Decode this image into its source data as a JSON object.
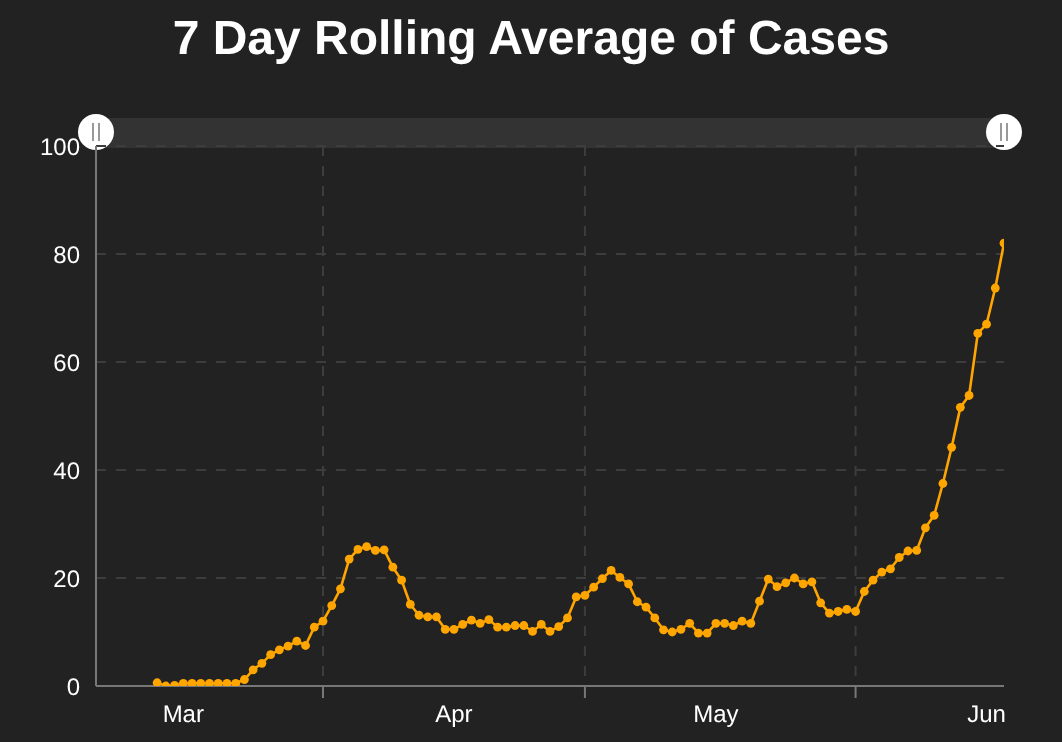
{
  "chart_data": {
    "type": "line",
    "title": "7 Day Rolling Average of Cases",
    "x": [
      "--03-13",
      "--03-14",
      "--03-15",
      "--03-16",
      "--03-17",
      "--03-18",
      "--03-19",
      "--03-20",
      "--03-21",
      "--03-22",
      "--03-23",
      "--03-24",
      "--03-25",
      "--03-26",
      "--03-27",
      "--03-28",
      "--03-29",
      "--03-30",
      "--03-31",
      "--04-01",
      "--04-02",
      "--04-03",
      "--04-04",
      "--04-05",
      "--04-06",
      "--04-07",
      "--04-08",
      "--04-09",
      "--04-10",
      "--04-11",
      "--04-12",
      "--04-13",
      "--04-14",
      "--04-15",
      "--04-16",
      "--04-17",
      "--04-18",
      "--04-19",
      "--04-20",
      "--04-21",
      "--04-22",
      "--04-23",
      "--04-24",
      "--04-25",
      "--04-26",
      "--04-27",
      "--04-28",
      "--04-29",
      "--04-30",
      "--05-01",
      "--05-02",
      "--05-03",
      "--05-04",
      "--05-05",
      "--05-06",
      "--05-07",
      "--05-08",
      "--05-09",
      "--05-10",
      "--05-11",
      "--05-12",
      "--05-13",
      "--05-14",
      "--05-15",
      "--05-16",
      "--05-17",
      "--05-18",
      "--05-19",
      "--05-20",
      "--05-21",
      "--05-22",
      "--05-23",
      "--05-24",
      "--05-25",
      "--05-26",
      "--05-27",
      "--05-28",
      "--05-29",
      "--05-30",
      "--05-31",
      "--06-01",
      "--06-02",
      "--06-03",
      "--06-04",
      "--06-05",
      "--06-06",
      "--06-07",
      "--06-08",
      "--06-09",
      "--06-10",
      "--06-11",
      "--06-12",
      "--06-13",
      "--06-14",
      "--06-15",
      "--06-16",
      "--06-17",
      "--06-18"
    ],
    "series": [
      {
        "color": "#ffa500",
        "values": [
          0.6,
          0,
          0.1,
          0.5,
          0.5,
          0.5,
          0.5,
          0.5,
          0.5,
          0.5,
          1.2,
          3.0,
          4.2,
          5.8,
          6.7,
          7.4,
          8.3,
          7.5,
          10.9,
          12.0,
          14.9,
          18.0,
          23.5,
          25.3,
          25.8,
          25.1,
          25.2,
          22.0,
          19.6,
          15.1,
          13.1,
          12.8,
          12.8,
          10.5,
          10.5,
          11.4,
          12.2,
          11.6,
          12.3,
          10.9,
          10.9,
          11.2,
          11.2,
          10.1,
          11.4,
          10.1,
          11.0,
          12.6,
          16.5,
          16.8,
          18.3,
          19.9,
          21.4,
          20.1,
          18.9,
          15.6,
          14.6,
          12.6,
          10.4,
          10.0,
          10.5,
          11.6,
          9.8,
          9.8,
          11.6,
          11.6,
          11.2,
          12.0,
          11.6,
          15.7,
          19.8,
          18.4,
          19.1,
          20.0,
          18.9,
          19.3,
          15.4,
          13.5,
          13.8,
          14.2,
          13.8,
          17.5,
          19.6,
          21.1,
          21.7,
          23.8,
          25.0,
          25.1,
          29.3,
          31.6,
          37.5,
          44.2,
          51.6,
          53.8,
          65.3,
          67.0,
          73.7,
          82.0
        ]
      }
    ],
    "xlim": [
      "--03-06",
      "--06-18"
    ],
    "xticks": [
      {
        "value": "--03-16",
        "label": "Mar"
      },
      {
        "value": "--04-01",
        "label": null
      },
      {
        "value": "--04-16",
        "label": "Apr"
      },
      {
        "value": "--05-01",
        "label": null
      },
      {
        "value": "--05-16",
        "label": "May"
      },
      {
        "value": "--06-01",
        "label": null
      },
      {
        "value": "--06-16",
        "label": "Jun"
      }
    ],
    "ylim": [
      0,
      100
    ],
    "yticks": [
      0,
      20,
      40,
      60,
      80,
      100
    ],
    "grid": true,
    "marker": "circle",
    "line_style": "solid"
  }
}
